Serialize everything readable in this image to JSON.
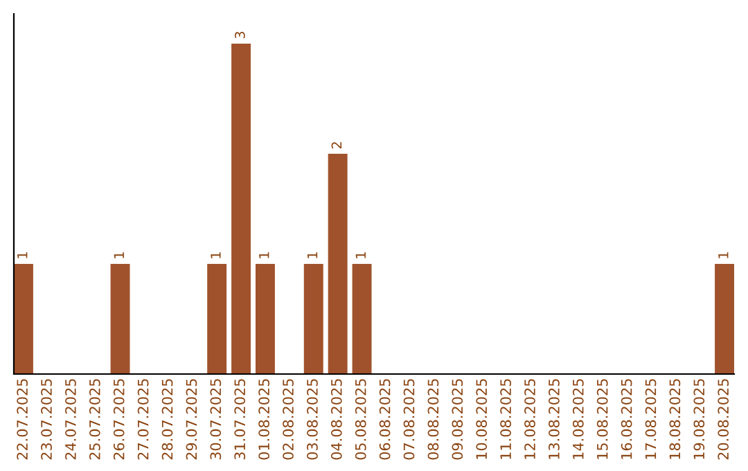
{
  "chart_data": {
    "type": "bar",
    "categories": [
      "22.07.2025",
      "23.07.2025",
      "24.07.2025",
      "25.07.2025",
      "26.07.2025",
      "27.07.2025",
      "28.07.2025",
      "29.07.2025",
      "30.07.2025",
      "31.07.2025",
      "01.08.2025",
      "02.08.2025",
      "03.08.2025",
      "04.08.2025",
      "05.08.2025",
      "06.08.2025",
      "07.08.2025",
      "08.08.2025",
      "09.08.2025",
      "10.08.2025",
      "11.08.2025",
      "12.08.2025",
      "13.08.2025",
      "14.08.2025",
      "15.08.2025",
      "16.08.2025",
      "17.08.2025",
      "18.08.2025",
      "19.08.2025",
      "20.08.2025"
    ],
    "values": [
      1,
      0,
      0,
      0,
      1,
      0,
      0,
      0,
      1,
      3,
      1,
      0,
      1,
      2,
      1,
      0,
      0,
      0,
      0,
      0,
      0,
      0,
      0,
      0,
      0,
      0,
      0,
      0,
      0,
      1
    ],
    "color": "#a0522d",
    "value_labels": [
      "1",
      null,
      null,
      null,
      "1",
      null,
      null,
      null,
      "1",
      "3",
      "1",
      null,
      "1",
      "2",
      "1",
      null,
      null,
      null,
      null,
      null,
      null,
      null,
      null,
      null,
      null,
      null,
      null,
      null,
      null,
      "1"
    ],
    "grid": false,
    "legend": false
  }
}
